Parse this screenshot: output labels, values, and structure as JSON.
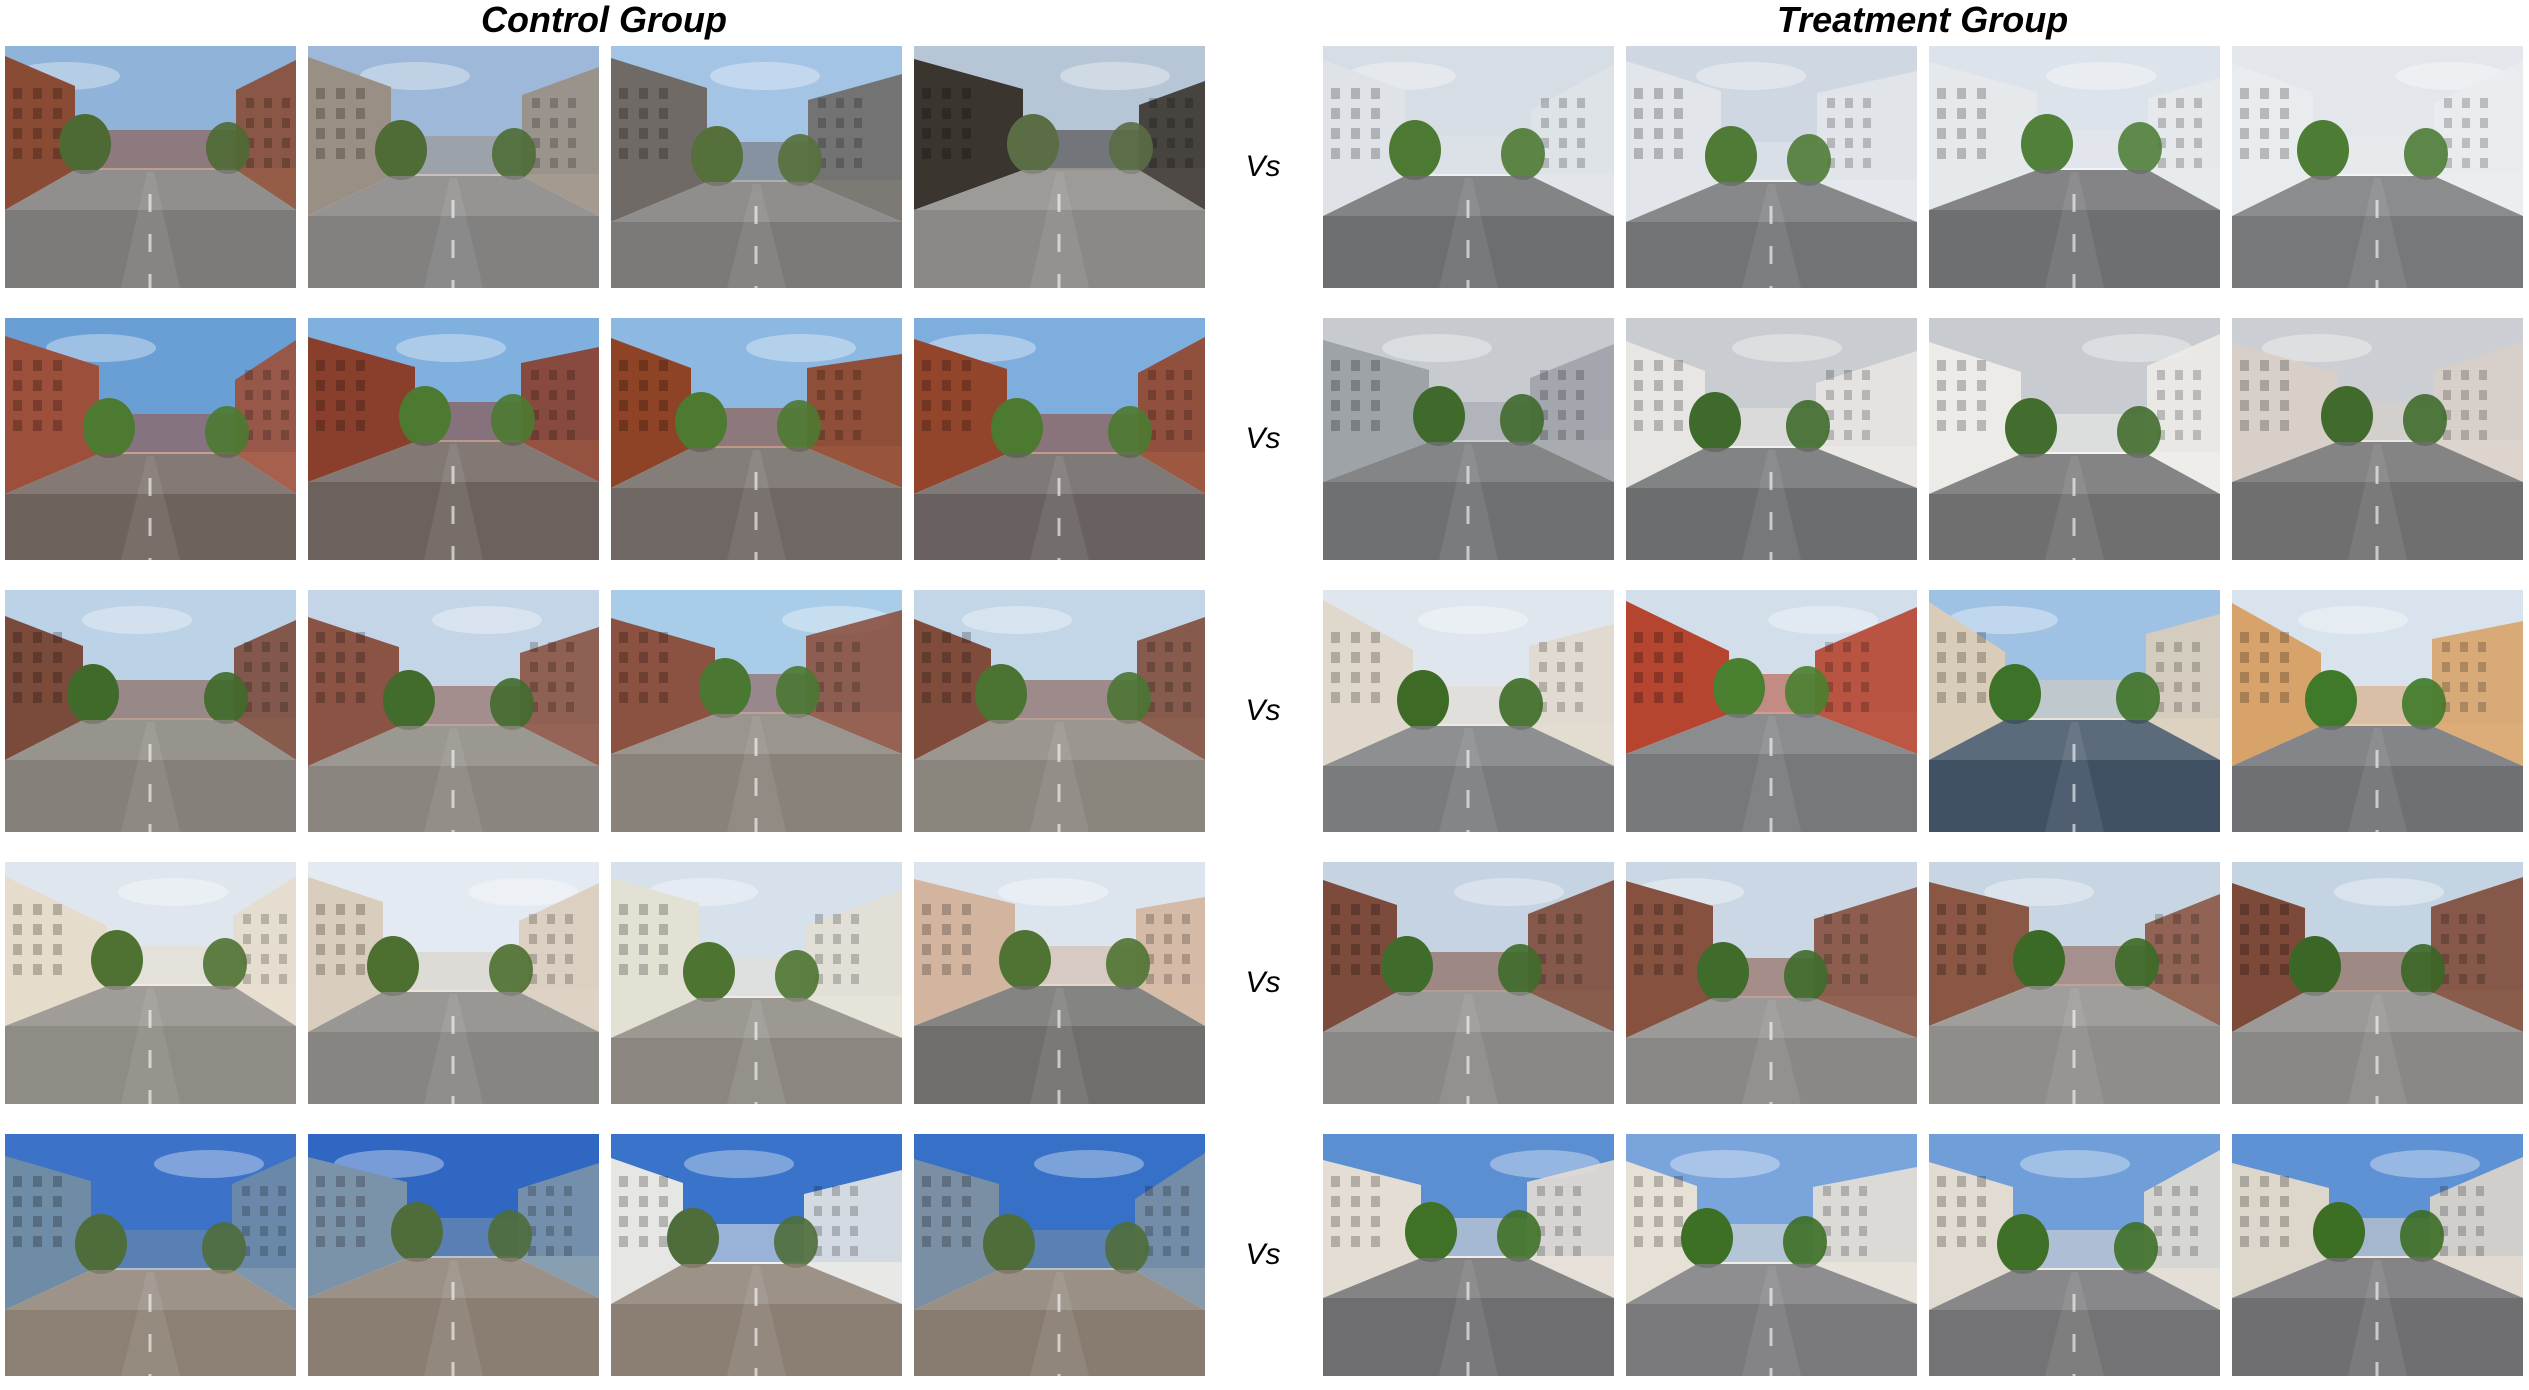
{
  "figure": {
    "control_title": "Control Group",
    "treatment_title": "Treatment Group",
    "vs_label": "Vs"
  },
  "pairs": [
    {
      "control": [
        {
          "scene": "downtown-brick-buildings-street",
          "palette": {
            "sky": "#8fb3d9",
            "wall": "#8a4b34",
            "ground": "#7d7b79",
            "green": "#4e6a34"
          }
        },
        {
          "scene": "downtown-office-facades",
          "palette": {
            "sky": "#9db8d8",
            "wall": "#9a8f84",
            "ground": "#828180",
            "green": "#4f6b36"
          }
        },
        {
          "scene": "city-street-skyline",
          "palette": {
            "sky": "#a4c4e6",
            "wall": "#6f6a66",
            "ground": "#7b7a78",
            "green": "#56703b"
          }
        },
        {
          "scene": "glass-storefront-corner",
          "palette": {
            "sky": "#b7c6d6",
            "wall": "#3b3530",
            "ground": "#8b8985",
            "green": "#5a6d45"
          }
        }
      ],
      "treatment": [
        {
          "scene": "housing-blocks-road",
          "palette": {
            "sky": "#d7dde4",
            "wall": "#dfe3e8",
            "ground": "#6d6e70",
            "green": "#4d7a33"
          }
        },
        {
          "scene": "housing-estate-carpark",
          "palette": {
            "sky": "#cfd8e2",
            "wall": "#e2e6ea",
            "ground": "#727375",
            "green": "#4f7b36"
          }
        },
        {
          "scene": "tower-blocks-parking",
          "palette": {
            "sky": "#dde3ea",
            "wall": "#e6e9ec",
            "ground": "#6e6f71",
            "green": "#50803a"
          }
        },
        {
          "scene": "no-parking-lot",
          "palette": {
            "sky": "#e3e7ec",
            "wall": "#e9ecef",
            "ground": "#77787a",
            "green": "#4d7c35"
          }
        }
      ]
    },
    {
      "control": [
        {
          "scene": "brick-housing-plaza",
          "palette": {
            "sky": "#6a9fd6",
            "wall": "#9c4f3a",
            "ground": "#6e625c",
            "green": "#4d7a31"
          }
        },
        {
          "scene": "paved-square-lamp-post",
          "palette": {
            "sky": "#7fb0de",
            "wall": "#8a3f2c",
            "ground": "#6c625d",
            "green": "#4d7a31"
          }
        },
        {
          "scene": "rust-metal-stair-building",
          "palette": {
            "sky": "#8cb8e2",
            "wall": "#8e4326",
            "ground": "#6f6763",
            "green": "#4d7a31"
          }
        },
        {
          "scene": "brick-path-street-view",
          "palette": {
            "sky": "#7eaedd",
            "wall": "#93452b",
            "ground": "#686160",
            "green": "#4d7a31"
          }
        }
      ],
      "treatment": [
        {
          "scene": "wide-road-trees",
          "palette": {
            "sky": "#c7cbd0",
            "wall": "#9ea3a8",
            "ground": "#6f7072",
            "green": "#3f6a2c"
          }
        },
        {
          "scene": "shophouse-boulevard",
          "palette": {
            "sky": "#c9ccd0",
            "wall": "#e8e6e2",
            "ground": "#6c6d6f",
            "green": "#3e6a2b"
          }
        },
        {
          "scene": "colonial-shophouse-row",
          "palette": {
            "sky": "#c8ccd1",
            "wall": "#ecebe7",
            "ground": "#706f70",
            "green": "#436d2f"
          }
        },
        {
          "scene": "red-shophouse-road",
          "palette": {
            "sky": "#cbced2",
            "wall": "#d8cfc8",
            "ground": "#6f6f70",
            "green": "#406b2c"
          }
        }
      ]
    },
    {
      "control": [
        {
          "scene": "brick-apartments-tree",
          "palette": {
            "sky": "#bcd2e6",
            "wall": "#7a4a3a",
            "ground": "#858079",
            "green": "#3f6a2a"
          }
        },
        {
          "scene": "brick-apartment-block",
          "palette": {
            "sky": "#c3d5e6",
            "wall": "#8a5344",
            "ground": "#8a857e",
            "green": "#416c2c"
          }
        },
        {
          "scene": "tree-lined-brick-street",
          "palette": {
            "sky": "#a9cde8",
            "wall": "#8b5141",
            "ground": "#88827a",
            "green": "#4a7832"
          }
        },
        {
          "scene": "courtyard-brick-flats",
          "palette": {
            "sky": "#c2d6e8",
            "wall": "#7f4c3c",
            "ground": "#8a857d",
            "green": "#4b7433"
          }
        }
      ],
      "treatment": [
        {
          "scene": "estate-trees-junction",
          "palette": {
            "sky": "#dfe6ee",
            "wall": "#e0d8cc",
            "ground": "#7a7b7d",
            "green": "#3d6b25"
          }
        },
        {
          "scene": "red-block-curved-road",
          "palette": {
            "sky": "#d2dfeb",
            "wall": "#b5452f",
            "ground": "#77787a",
            "green": "#4a8030"
          }
        },
        {
          "scene": "blue-paved-driveway",
          "palette": {
            "sky": "#9fc2e4",
            "wall": "#d9cdb9",
            "ground": "#405164",
            "green": "#3d7328"
          }
        },
        {
          "scene": "estate-cones-lawn",
          "palette": {
            "sky": "#d8e3ed",
            "wall": "#d8a36a",
            "ground": "#6f7073",
            "green": "#3f7a2a"
          }
        }
      ]
    },
    {
      "control": [
        {
          "scene": "bay-window-houses-van",
          "palette": {
            "sky": "#dfe6ee",
            "wall": "#e6dccb",
            "ground": "#8f8b85",
            "green": "#4f7232"
          }
        },
        {
          "scene": "residential-street-wires",
          "palette": {
            "sky": "#e3eaf1",
            "wall": "#d9cdbd",
            "ground": "#878581",
            "green": "#4d6f30"
          }
        },
        {
          "scene": "cottage-mural-tree",
          "palette": {
            "sky": "#d6e1ec",
            "wall": "#e3e0d4",
            "ground": "#8b8780",
            "green": "#4e7431"
          }
        },
        {
          "scene": "mural-street-houses",
          "palette": {
            "sky": "#dce5ee",
            "wall": "#d3b59f",
            "ground": "#6f6e6c",
            "green": "#4f7332"
          }
        }
      ],
      "treatment": [
        {
          "scene": "balcony-apartments-garages",
          "palette": {
            "sky": "#c5d3e2",
            "wall": "#7c4b3b",
            "ground": "#8a8886",
            "green": "#3f6b2b"
          }
        },
        {
          "scene": "apartment-courtyard-road",
          "palette": {
            "sky": "#cbd7e4",
            "wall": "#86513f",
            "ground": "#8a8886",
            "green": "#3f6b2b"
          }
        },
        {
          "scene": "roundabout-parked-car",
          "palette": {
            "sky": "#c8d6e4",
            "wall": "#8a5745",
            "ground": "#8f8d8a",
            "green": "#3b6a26"
          }
        },
        {
          "scene": "parking-row-apartments",
          "palette": {
            "sky": "#c5d4e3",
            "wall": "#7d4a39",
            "ground": "#8a8886",
            "green": "#3a6726"
          }
        }
      ]
    },
    {
      "control": [
        {
          "scene": "blue-houses-cobbled-lane",
          "palette": {
            "sky": "#3c72c8",
            "wall": "#6f8ca6",
            "ground": "#8c8074",
            "green": "#4f6d3a"
          }
        },
        {
          "scene": "courtyard-cottages",
          "palette": {
            "sky": "#2f67c3",
            "wall": "#7b93a8",
            "ground": "#8a7e72",
            "green": "#4f6d3a"
          }
        },
        {
          "scene": "red-roof-cottage-signs",
          "palette": {
            "sky": "#3a73ca",
            "wall": "#e6e6e4",
            "ground": "#8b7f73",
            "green": "#4f6d3a"
          }
        },
        {
          "scene": "tiled-roof-street",
          "palette": {
            "sky": "#3770c7",
            "wall": "#7a8fa3",
            "ground": "#887c70",
            "green": "#4f6d3a"
          }
        }
      ],
      "treatment": [
        {
          "scene": "palm-terrace-houses",
          "palette": {
            "sky": "#5c8fd2",
            "wall": "#e3ddd4",
            "ground": "#6e6e70",
            "green": "#3f7126"
          }
        },
        {
          "scene": "townhouse-facade",
          "palette": {
            "sky": "#7aa5dc",
            "wall": "#e6e0d6",
            "ground": "#7a7a7c",
            "green": "#3d6f25"
          }
        },
        {
          "scene": "palm-townhouse-row",
          "palette": {
            "sky": "#6f9ed9",
            "wall": "#e1dbd1",
            "ground": "#737375",
            "green": "#3e7027"
          }
        },
        {
          "scene": "townhouse-road-crossing",
          "palette": {
            "sky": "#5f92d4",
            "wall": "#ddd6cb",
            "ground": "#6f6f71",
            "green": "#3c6e24"
          }
        }
      ]
    }
  ]
}
